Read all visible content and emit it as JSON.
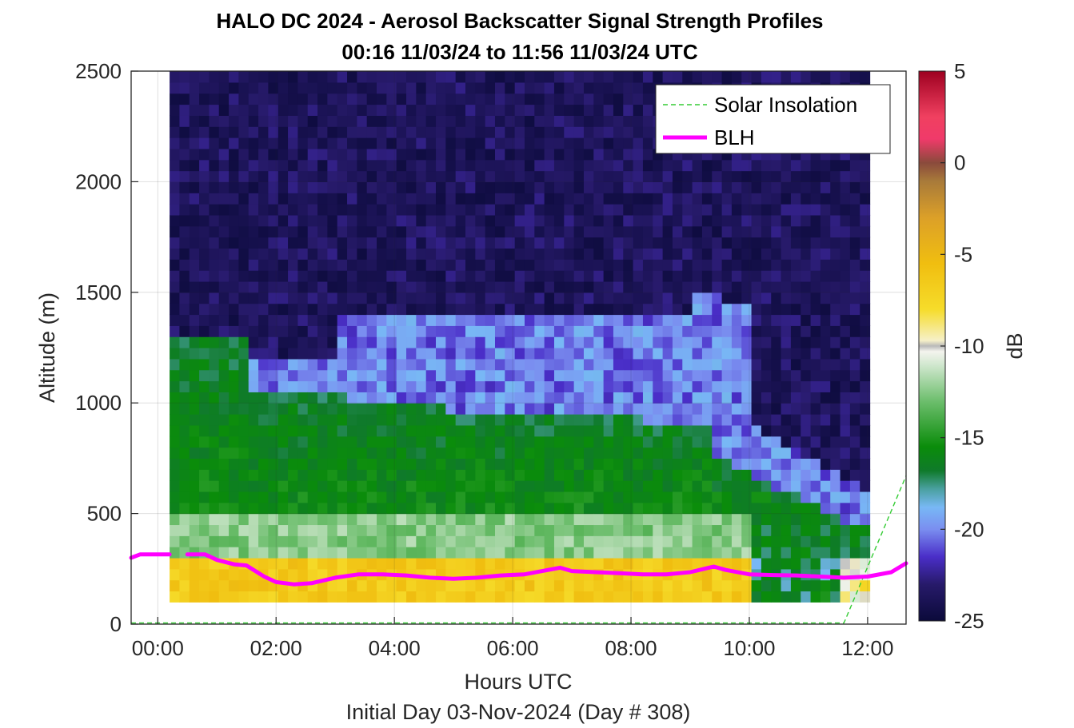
{
  "chart_data": {
    "type": "heatmap",
    "title": "HALO DC 2024 - Aerosol Backscatter Signal Strength Profiles",
    "subtitle": "00:16 11/03/24 to 11:56 11/03/24  UTC",
    "xlabel": "Hours UTC",
    "ylabel": "Altitude (m)",
    "footnote": "Initial Day 03-Nov-2024 (Day # 308)",
    "colorbar_label": "dB",
    "xlim": [
      -0.45,
      12.65
    ],
    "ylim": [
      0,
      2500
    ],
    "clim": [
      -25,
      5
    ],
    "grid": true,
    "legend_position": "top-right",
    "x_ticks": [
      0,
      2,
      4,
      6,
      8,
      10,
      12
    ],
    "x_tick_labels": [
      "00:00",
      "02:00",
      "04:00",
      "06:00",
      "08:00",
      "10:00",
      "12:00"
    ],
    "y_ticks": [
      0,
      500,
      1000,
      1500,
      2000,
      2500
    ],
    "y_tick_labels": [
      "0",
      "500",
      "1000",
      "1500",
      "2000",
      "2500"
    ],
    "colorbar_ticks": [
      5,
      0,
      -5,
      -10,
      -15,
      -20,
      -25
    ],
    "colorbar_tick_labels": [
      "5",
      "0",
      "-5",
      "-10",
      "-15",
      "-20",
      "-25"
    ],
    "colormap": [
      {
        "v": -25,
        "c": "#0b0a3a"
      },
      {
        "v": -23,
        "c": "#271a6a"
      },
      {
        "v": -21.5,
        "c": "#4a2ec8"
      },
      {
        "v": -20,
        "c": "#7a8ef0"
      },
      {
        "v": -18.8,
        "c": "#78b8f5"
      },
      {
        "v": -17.8,
        "c": "#4aa0a0"
      },
      {
        "v": -16.8,
        "c": "#0f7a2a"
      },
      {
        "v": -15.5,
        "c": "#0a8c0a"
      },
      {
        "v": -13,
        "c": "#6dbe6d"
      },
      {
        "v": -11,
        "c": "#d2e8d0"
      },
      {
        "v": -10.3,
        "c": "#f4f4ee"
      },
      {
        "v": -10.0,
        "c": "#b9b9b9"
      },
      {
        "v": -9.7,
        "c": "#f6f0c8"
      },
      {
        "v": -8,
        "c": "#f6dc2a"
      },
      {
        "v": -5.5,
        "c": "#f0be10"
      },
      {
        "v": -3,
        "c": "#dca028"
      },
      {
        "v": -1,
        "c": "#a87a3a"
      },
      {
        "v": 0,
        "c": "#8a4a3c"
      },
      {
        "v": 1.3,
        "c": "#f03a6a"
      },
      {
        "v": 2.5,
        "c": "#f04060"
      },
      {
        "v": 5,
        "c": "#9e0020"
      }
    ],
    "heatmap": {
      "x_start": 0.2,
      "x_step": 0.1667,
      "n_cols": 71,
      "y_start": 100,
      "y_step": 50,
      "n_rows": 48
    },
    "series": [
      {
        "name": "Solar Insolation",
        "type": "line",
        "color": "#33cc33",
        "dash": true,
        "x": [
          -0.45,
          11.6,
          12.65
        ],
        "y": [
          5,
          5,
          670
        ]
      },
      {
        "name": "BLH",
        "type": "line",
        "color": "#ff00ff",
        "segments": [
          {
            "x": [
              -0.45,
              -0.3,
              0.0,
              0.2
            ],
            "y": [
              300,
              315,
              315,
              315
            ]
          },
          {
            "x": [
              0.5,
              0.8,
              1.0,
              1.3,
              1.5,
              1.8,
              2.0,
              2.3,
              2.6,
              3.0,
              3.4,
              3.8,
              4.2,
              4.6,
              5.0,
              5.4,
              5.8,
              6.2,
              6.6,
              6.8,
              7.0,
              7.4,
              7.8,
              8.2,
              8.6,
              9.0,
              9.4,
              9.6,
              10.0,
              10.4,
              10.8,
              11.2,
              11.6,
              12.0,
              12.4,
              12.65
            ],
            "y": [
              315,
              315,
              290,
              270,
              265,
              215,
              190,
              180,
              185,
              210,
              225,
              225,
              220,
              210,
              205,
              210,
              220,
              225,
              245,
              255,
              240,
              235,
              230,
              225,
              225,
              235,
              260,
              245,
              225,
              222,
              220,
              215,
              210,
              215,
              235,
              275
            ]
          }
        ]
      }
    ]
  }
}
